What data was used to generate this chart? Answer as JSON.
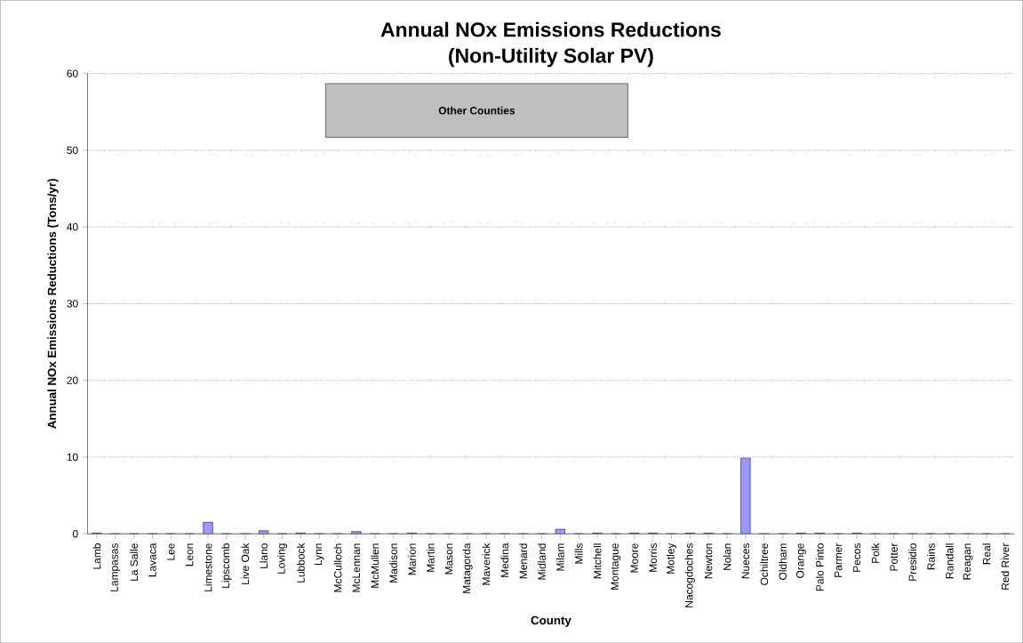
{
  "chart_data": {
    "type": "bar",
    "title": "Annual NOx Emissions Reductions\n(Non-Utility Solar PV)",
    "xlabel": "County",
    "ylabel": "Annual NOx Emissions Reductions (Tons/yr)",
    "categories": [
      "Lamb",
      "Lampasas",
      "La Salle",
      "Lavaca",
      "Lee",
      "Leon",
      "Limestone",
      "Lipscomb",
      "Live Oak",
      "Llano",
      "Loving",
      "Lubbock",
      "Lynn",
      "McCulloch",
      "McLennan",
      "McMullen",
      "Madison",
      "Marion",
      "Martin",
      "Mason",
      "Matagorda",
      "Maverick",
      "Medina",
      "Menard",
      "Midland",
      "Milam",
      "Mills",
      "Mitchell",
      "Montague",
      "Moore",
      "Morris",
      "Motley",
      "Nacogdoches",
      "Newton",
      "Nolan",
      "Nueces",
      "Ochiltree",
      "Oldham",
      "Orange",
      "Palo Pinto",
      "Parmer",
      "Pecos",
      "Polk",
      "Potter",
      "Presidio",
      "Rains",
      "Randall",
      "Reagan",
      "Real",
      "Red River"
    ],
    "values": [
      0.1,
      0,
      0,
      0,
      0,
      0,
      1.5,
      0,
      0,
      0.4,
      0,
      0.1,
      0,
      0,
      0.3,
      0,
      0,
      0.1,
      0,
      0,
      0,
      0,
      0,
      0,
      0,
      0.6,
      0,
      0.1,
      0,
      0.1,
      0.1,
      0,
      0.1,
      0.1,
      0,
      9.9,
      0,
      0,
      0.1,
      0.1,
      0,
      0.1,
      0,
      0,
      0,
      0,
      0,
      0,
      0,
      0
    ],
    "color": "#9999ff",
    "ylim": [
      0,
      60
    ],
    "yticks": [
      0,
      10,
      20,
      30,
      40,
      50,
      60
    ],
    "grid": "y",
    "annotations": [
      "Other Counties"
    ]
  }
}
